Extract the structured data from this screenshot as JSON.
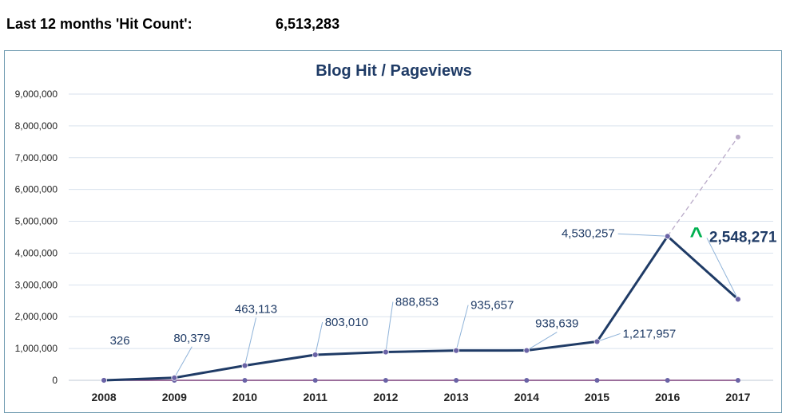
{
  "header": {
    "label": "Last 12 months 'Hit Count':",
    "value": "6,513,283"
  },
  "colors": {
    "main_line": "#1f3b66",
    "marker": "#6a63a6",
    "baseline": "#7a3f7a",
    "projection": "#b9aac8",
    "label_text": "#1f3b66",
    "leader": "#8fb3d9",
    "up_arrow": "#00b050",
    "grid": "#d9e2ee",
    "axis_text": "#222222"
  },
  "chart_data": {
    "type": "line",
    "title": "Blog Hit / Pageviews",
    "categories": [
      "2008",
      "2009",
      "2010",
      "2011",
      "2012",
      "2013",
      "2014",
      "2015",
      "2016",
      "2017"
    ],
    "ylim": [
      0,
      9000000
    ],
    "yticks": [
      0,
      1000000,
      2000000,
      3000000,
      4000000,
      5000000,
      6000000,
      7000000,
      8000000,
      9000000
    ],
    "ytick_labels": [
      "0",
      "1,000,000",
      "2,000,000",
      "3,000,000",
      "4,000,000",
      "5,000,000",
      "6,000,000",
      "7,000,000",
      "8,000,000",
      "9,000,000"
    ],
    "grid": true,
    "legend": "none",
    "series": [
      {
        "values": [
          326,
          80379,
          463113,
          803010,
          888853,
          935657,
          938639,
          1217957,
          4530257,
          2548271
        ],
        "labels": [
          "326",
          "80,379",
          "463,113",
          "803,010",
          "888,853",
          "935,657",
          "938,639",
          "1,217,957",
          "4,530,257",
          "2,548,271"
        ]
      },
      {
        "values": [
          0,
          0,
          0,
          0,
          0,
          0,
          0,
          0,
          0,
          0
        ]
      }
    ],
    "projection": {
      "from_category": "2016",
      "from_value": 4530257,
      "to_category": "2017",
      "to_value": 7650000
    },
    "annotation": {
      "symbol": "^"
    }
  }
}
